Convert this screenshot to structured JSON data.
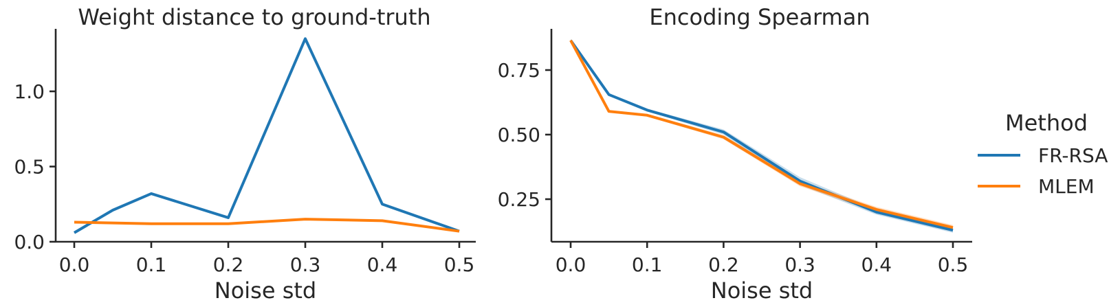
{
  "chart_data": [
    {
      "type": "line",
      "title": "Weight distance to ground-truth",
      "xlabel": "Noise std",
      "ylabel": "",
      "xlim": [
        -0.025,
        0.525
      ],
      "ylim": [
        0.0,
        1.4
      ],
      "xticks": [
        0.0,
        0.1,
        0.2,
        0.3,
        0.4,
        0.5
      ],
      "xtick_labels": [
        "0.0",
        "0.1",
        "0.2",
        "0.3",
        "0.4",
        "0.5"
      ],
      "yticks": [
        0.0,
        0.5,
        1.0
      ],
      "ytick_labels": [
        "0.0",
        "0.5",
        "1.0"
      ],
      "x": [
        0.0,
        0.05,
        0.1,
        0.2,
        0.3,
        0.4,
        0.5
      ],
      "series": [
        {
          "name": "FR-RSA",
          "color": "#1f77b4",
          "values": [
            0.06,
            0.21,
            0.32,
            0.16,
            1.35,
            0.25,
            0.07
          ]
        },
        {
          "name": "MLEM",
          "color": "#ff7f0e",
          "values": [
            0.13,
            0.125,
            0.12,
            0.12,
            0.15,
            0.14,
            0.07
          ]
        }
      ]
    },
    {
      "type": "line",
      "title": "Encoding Spearman",
      "xlabel": "Noise std",
      "ylabel": "",
      "xlim": [
        -0.025,
        0.525
      ],
      "ylim": [
        0.08,
        0.9
      ],
      "xticks": [
        0.0,
        0.1,
        0.2,
        0.3,
        0.4,
        0.5
      ],
      "xtick_labels": [
        "0.0",
        "0.1",
        "0.2",
        "0.3",
        "0.4",
        "0.5"
      ],
      "yticks": [
        0.25,
        0.5,
        0.75
      ],
      "ytick_labels": [
        "0.25",
        "0.50",
        "0.75"
      ],
      "x": [
        0.0,
        0.05,
        0.1,
        0.2,
        0.3,
        0.4,
        0.5
      ],
      "series": [
        {
          "name": "FR-RSA",
          "color": "#1f77b4",
          "values": [
            0.865,
            0.655,
            0.595,
            0.51,
            0.32,
            0.2,
            0.13
          ],
          "band": [
            0.005,
            0.005,
            0.005,
            0.01,
            0.015,
            0.01,
            0.01
          ]
        },
        {
          "name": "MLEM",
          "color": "#ff7f0e",
          "values": [
            0.865,
            0.59,
            0.575,
            0.49,
            0.31,
            0.21,
            0.14
          ],
          "band": [
            0.005,
            0.005,
            0.005,
            0.008,
            0.01,
            0.01,
            0.01
          ]
        }
      ]
    }
  ],
  "legend": {
    "title": "Method",
    "placement": "right",
    "items": [
      {
        "label": "FR-RSA",
        "color": "#1f77b4"
      },
      {
        "label": "MLEM",
        "color": "#ff7f0e"
      }
    ]
  }
}
